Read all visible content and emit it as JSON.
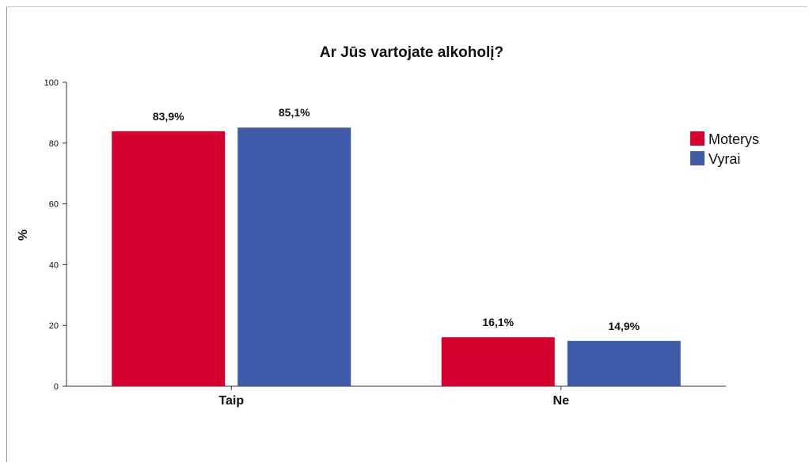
{
  "chart_data": {
    "type": "bar",
    "title": "Ar Jūs vartojate alkoholį?",
    "xlabel": "",
    "ylabel": "%",
    "ylim": [
      0,
      100
    ],
    "yticks": [
      0,
      20,
      40,
      60,
      80,
      100
    ],
    "categories": [
      "Taip",
      "Ne"
    ],
    "series": [
      {
        "name": "Moterys",
        "color": "#d6002f",
        "values": [
          83.9,
          16.1
        ],
        "labels": [
          "83,9%",
          "16,1%"
        ]
      },
      {
        "name": "Vyrai",
        "color": "#3f5aa8",
        "values": [
          85.1,
          14.9
        ],
        "labels": [
          "85,1%",
          "14,9%"
        ]
      }
    ],
    "legend": "right",
    "grid": false
  }
}
